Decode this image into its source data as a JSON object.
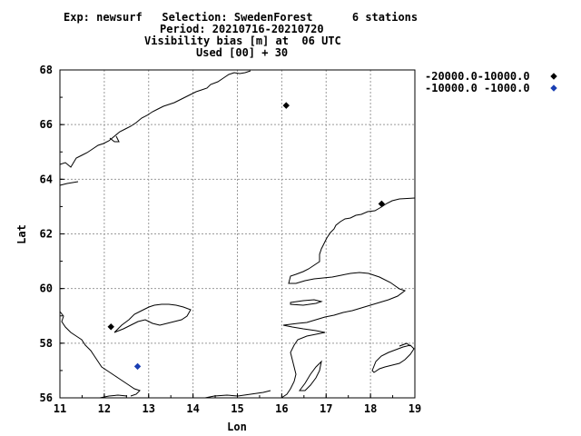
{
  "header": {
    "line1": "Exp: newsurf   Selection: SwedenForest      6 stations",
    "line2": "Period: 20210716-20210720",
    "line3": "Visibility bias [m] at  06 UTC",
    "line4": "Used [00] + 30"
  },
  "chart_data": {
    "type": "scatter",
    "title": "Visibility bias [m] at  06 UTC",
    "xlabel": "Lon",
    "ylabel": "Lat",
    "xlim": [
      11,
      19
    ],
    "ylim": [
      56,
      68
    ],
    "xticks": [
      "11",
      "12",
      "13",
      "14",
      "15",
      "16",
      "17",
      "18",
      "19"
    ],
    "yticks": [
      "56",
      "58",
      "60",
      "62",
      "64",
      "66",
      "68"
    ],
    "grid": true,
    "legend_position": "right",
    "series": [
      {
        "name": "-20000.0-10000.0",
        "color": "#000000",
        "marker": "diamond",
        "points": [
          {
            "x": 16.1,
            "y": 66.7
          },
          {
            "x": 18.25,
            "y": 63.1
          },
          {
            "x": 12.15,
            "y": 58.6
          }
        ]
      },
      {
        "name": "-10000.0 -1000.0",
        "color": "#1a3fb3",
        "marker": "diamond",
        "points": [
          {
            "x": 12.75,
            "y": 57.15
          }
        ]
      }
    ]
  }
}
